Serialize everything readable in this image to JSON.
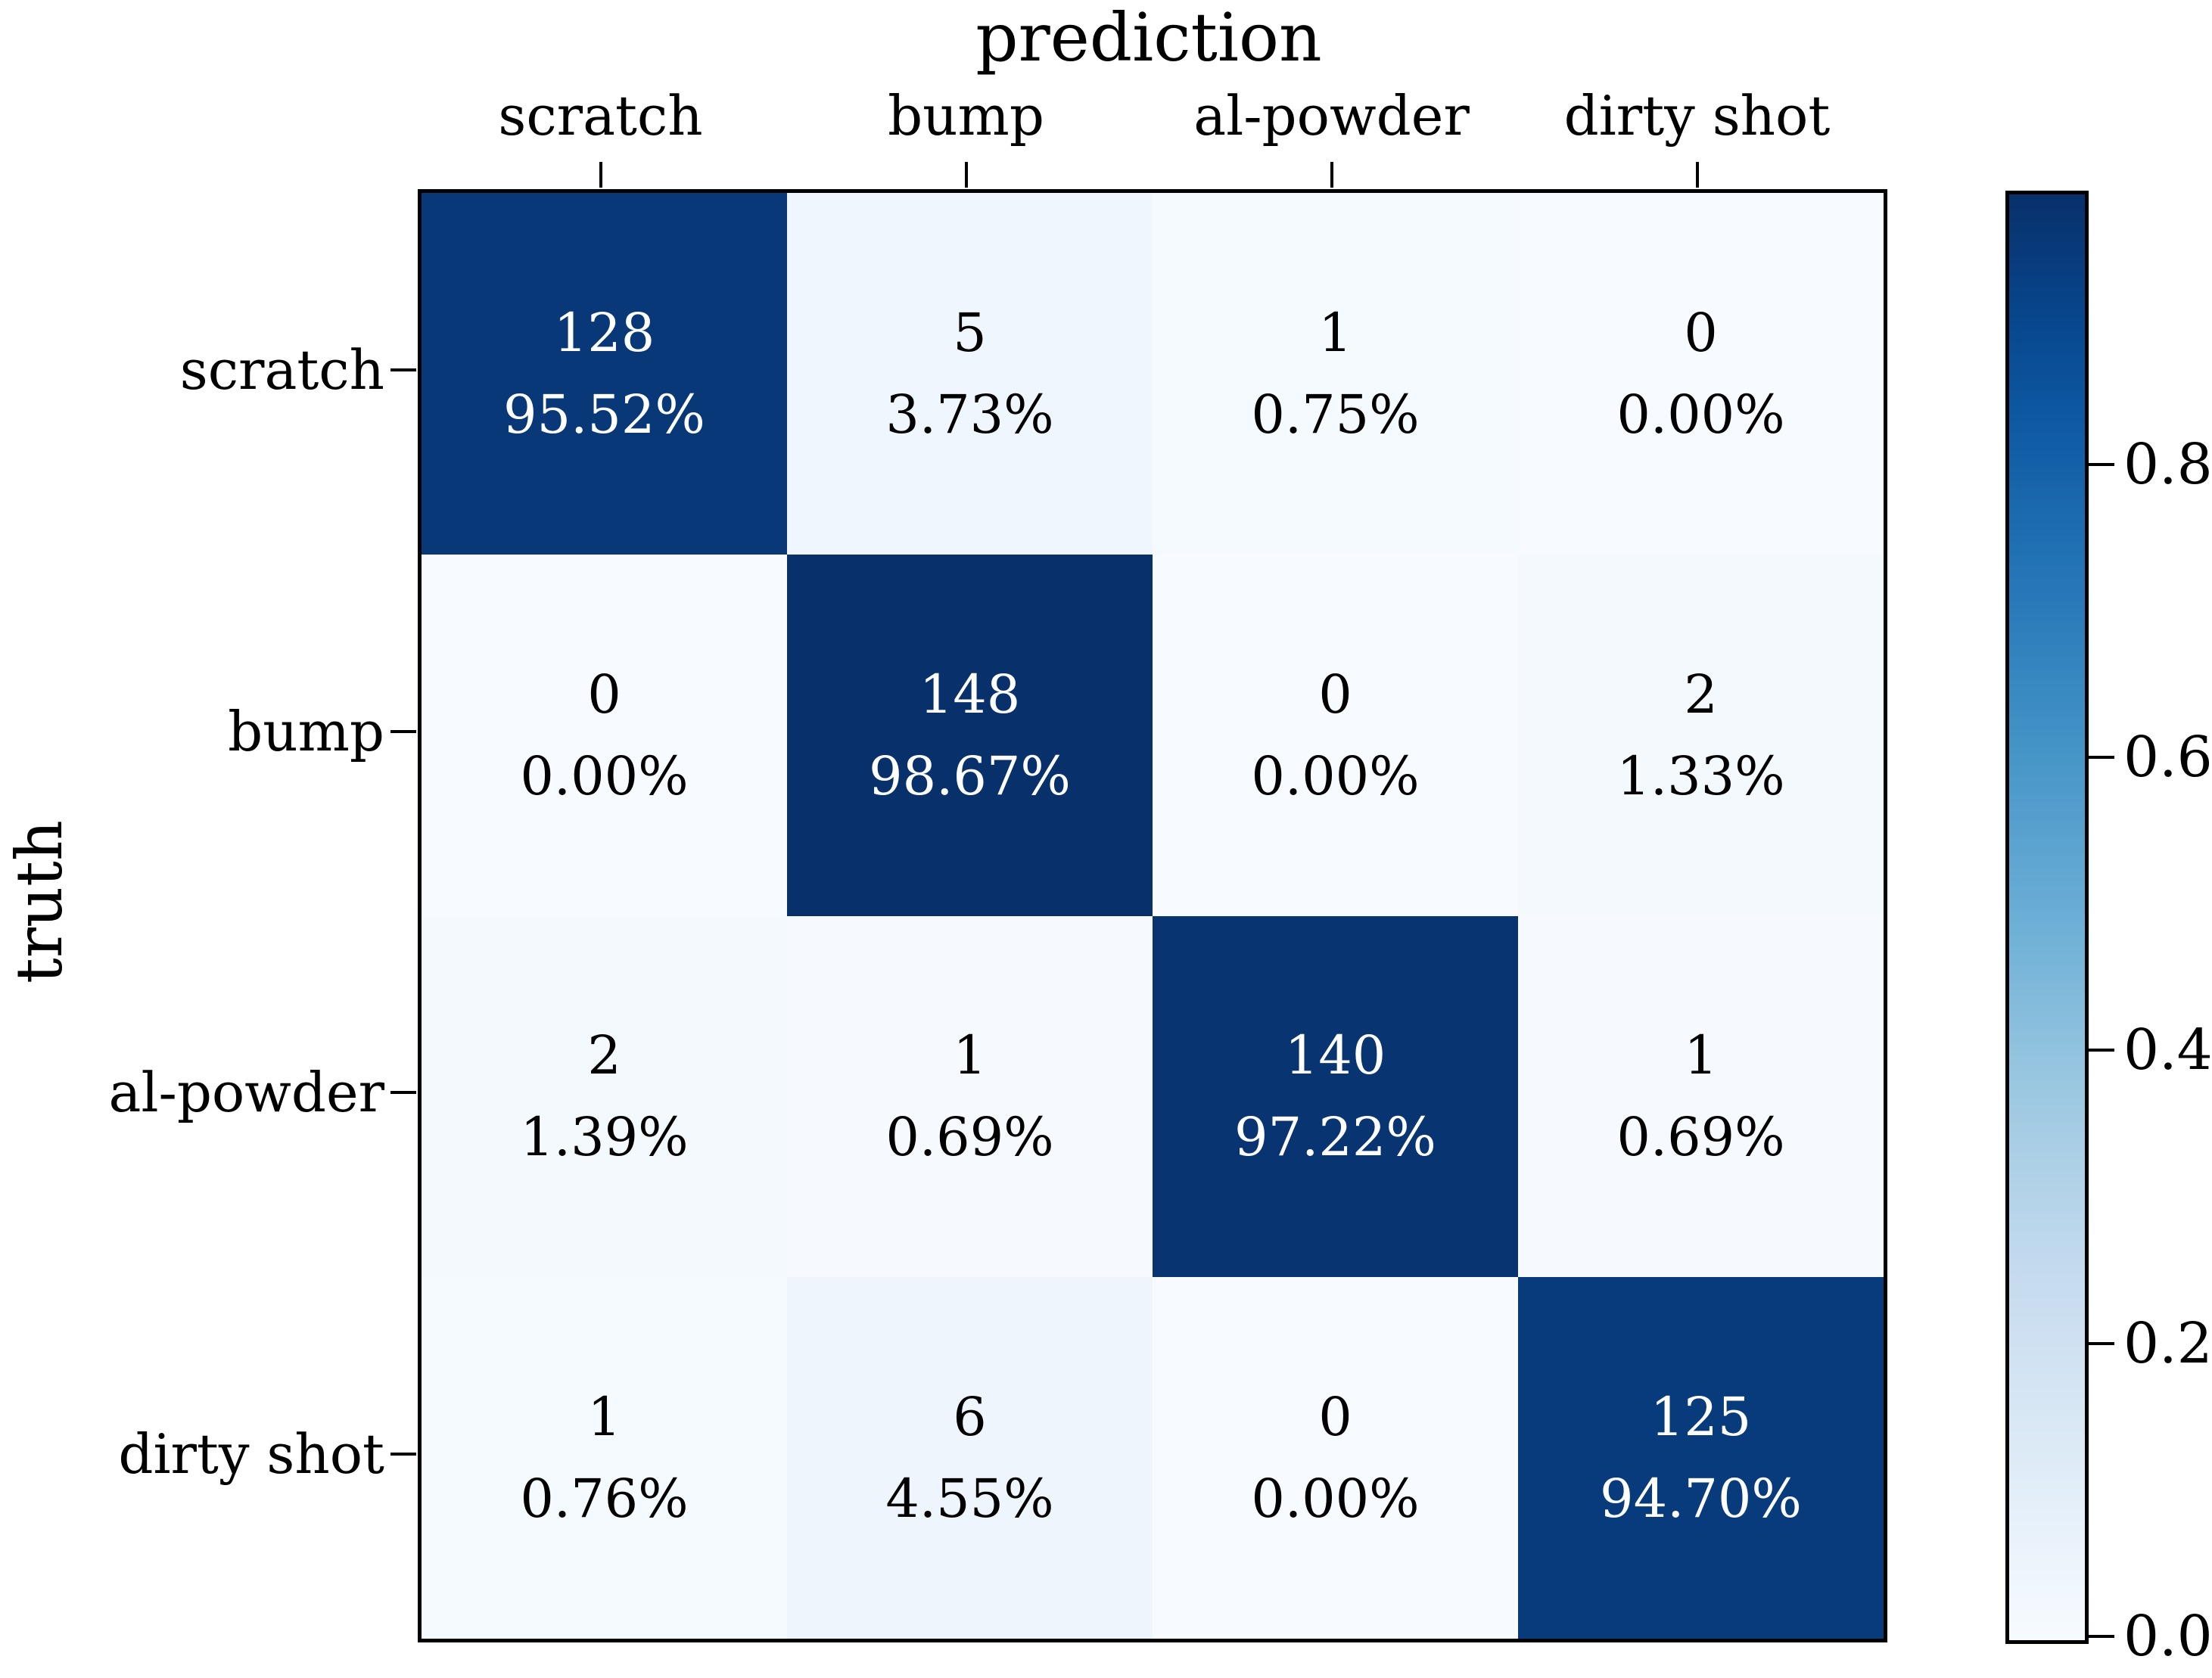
{
  "figure": {
    "title": "prediction",
    "y_axis_label": "truth"
  },
  "chart_data": {
    "type": "heatmap",
    "subtype": "confusion-matrix",
    "title": "prediction",
    "xlabel": "prediction",
    "ylabel": "truth",
    "col_labels": [
      "scratch",
      "bump",
      "al-powder",
      "dirty shot"
    ],
    "row_labels": [
      "scratch",
      "bump",
      "al-powder",
      "dirty shot"
    ],
    "counts": [
      [
        "128",
        "5",
        "1",
        "0"
      ],
      [
        "0",
        "148",
        "0",
        "2"
      ],
      [
        "2",
        "1",
        "140",
        "1"
      ],
      [
        "1",
        "6",
        "0",
        "125"
      ]
    ],
    "percent_labels": [
      [
        "95.52%",
        "3.73%",
        "0.75%",
        "0.00%"
      ],
      [
        "0.00%",
        "98.67%",
        "0.00%",
        "1.33%"
      ],
      [
        "1.39%",
        "0.69%",
        "97.22%",
        "0.69%"
      ],
      [
        "0.76%",
        "4.55%",
        "0.00%",
        "94.70%"
      ]
    ],
    "fractions": [
      [
        0.9552,
        0.0373,
        0.0075,
        0.0
      ],
      [
        0.0,
        0.9867,
        0.0,
        0.0133
      ],
      [
        0.0139,
        0.0069,
        0.9722,
        0.0069
      ],
      [
        0.0076,
        0.0455,
        0.0,
        0.947
      ]
    ],
    "colormap": "Blues",
    "vmin": 0.0,
    "vmax": 0.9867,
    "grid": false,
    "legend_position": "right-colorbar",
    "colorbar_ticks": [
      {
        "label": "0.8",
        "value": 0.8
      },
      {
        "label": "0.6",
        "value": 0.6
      },
      {
        "label": "0.4",
        "value": 0.4
      },
      {
        "label": "0.2",
        "value": 0.2
      },
      {
        "label": "0.0",
        "value": 0.0
      }
    ]
  },
  "colors": {
    "background": "#ffffff",
    "axis_stroke": "#000000",
    "cmap_low": "#f7fbff",
    "cmap_high": "#08306b",
    "cell_text_dark": "#000000",
    "cell_text_light": "#ffffff"
  }
}
